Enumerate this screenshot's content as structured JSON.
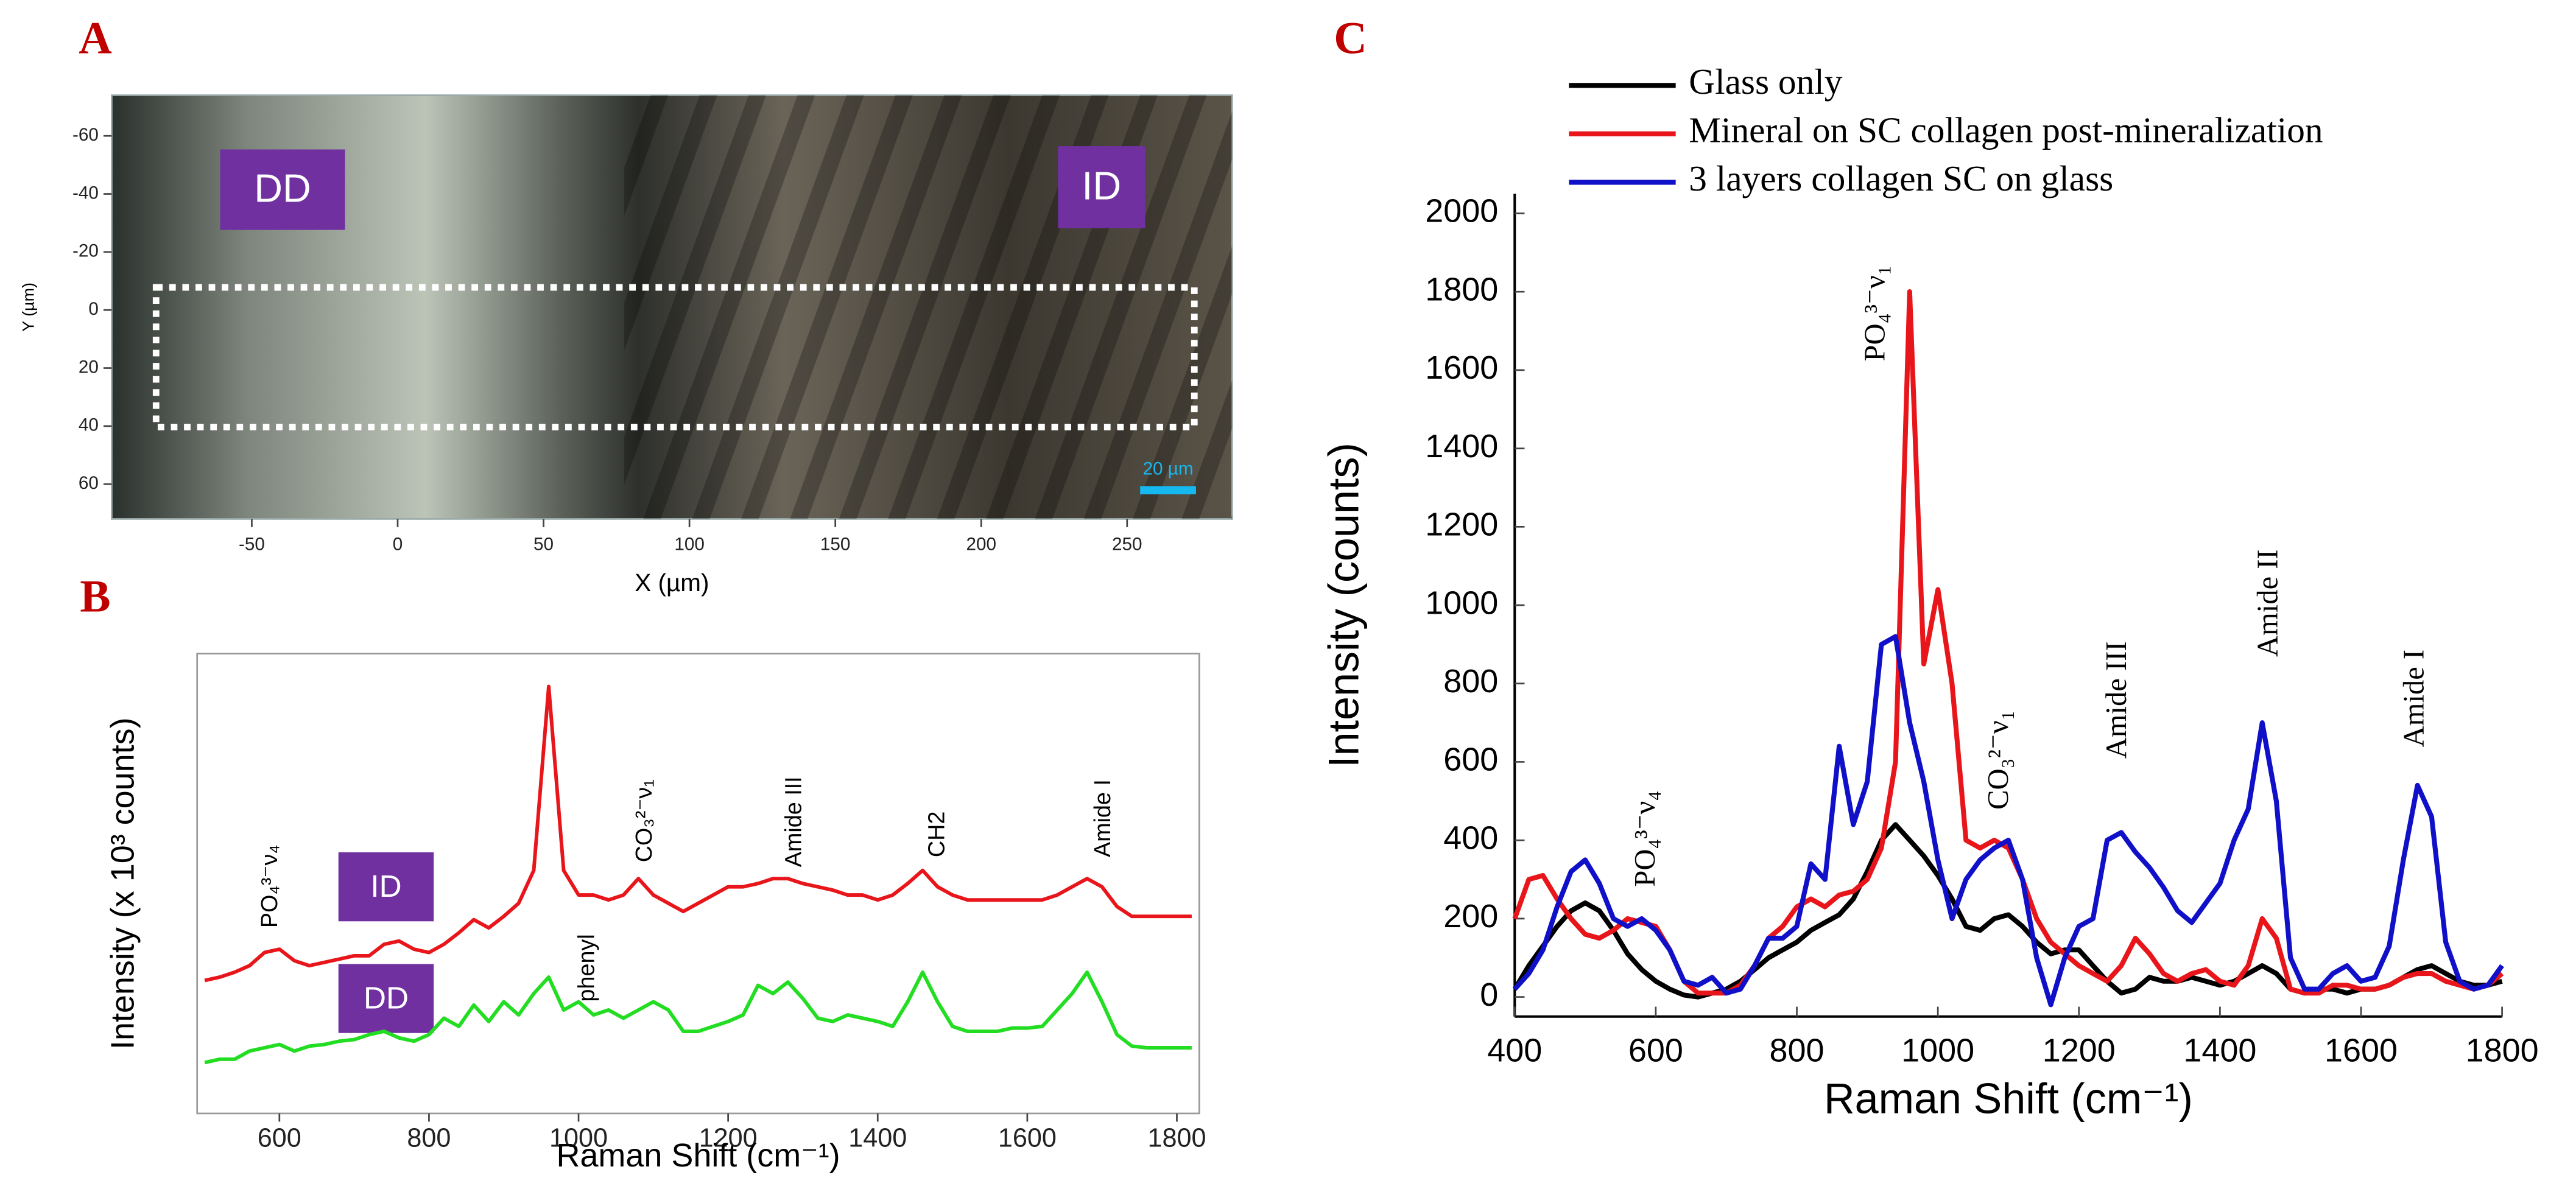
{
  "chart_data": [
    {
      "type": "image",
      "panel": "A",
      "xlabel": "X (µm)",
      "ylabel": "Y (µm)",
      "labels": [
        "DD",
        "ID"
      ],
      "scale_bar": "20 µm",
      "xlim": [
        -98,
        286
      ],
      "xticks": [
        -50,
        0,
        50,
        100,
        150,
        200,
        250
      ],
      "ylim": [
        -74,
        72
      ],
      "y_inverted": true,
      "yticks": [
        -60,
        -40,
        -20,
        0,
        20,
        40,
        60
      ]
    },
    {
      "type": "line",
      "panel": "B",
      "xlabel": "Raman Shift (cm⁻¹)",
      "ylabel": "Intensity (x 10³ counts)",
      "frame": true,
      "labels": [
        "ID",
        "DD"
      ],
      "annotations": [
        "PO₄³⁻ν₄",
        "phenyl",
        "CO₃²⁻ν₁",
        "Amide III",
        "CH2",
        "Amide I"
      ],
      "xlim": [
        490,
        1830
      ],
      "xticks": [
        600,
        800,
        1000,
        1200,
        1400,
        1600,
        1800
      ],
      "ylim": [
        0,
        2.8
      ],
      "x": [
        500,
        520,
        540,
        560,
        580,
        600,
        620,
        640,
        660,
        680,
        700,
        720,
        740,
        760,
        780,
        800,
        820,
        840,
        860,
        880,
        900,
        920,
        940,
        960,
        980,
        1000,
        1020,
        1040,
        1060,
        1080,
        1100,
        1120,
        1140,
        1160,
        1180,
        1200,
        1220,
        1240,
        1260,
        1280,
        1300,
        1320,
        1340,
        1360,
        1380,
        1400,
        1420,
        1440,
        1460,
        1480,
        1500,
        1520,
        1540,
        1560,
        1580,
        1600,
        1620,
        1640,
        1660,
        1680,
        1700,
        1720,
        1740,
        1760,
        1780,
        1800,
        1820
      ],
      "series": [
        {
          "color": "#e8161b",
          "values": [
            0.81,
            0.83,
            0.86,
            0.9,
            0.98,
            1.0,
            0.93,
            0.9,
            0.92,
            0.94,
            0.96,
            0.96,
            1.03,
            1.05,
            1.0,
            0.98,
            1.03,
            1.1,
            1.18,
            1.13,
            1.2,
            1.28,
            1.48,
            2.6,
            1.48,
            1.33,
            1.33,
            1.3,
            1.33,
            1.43,
            1.33,
            1.28,
            1.23,
            1.28,
            1.33,
            1.38,
            1.38,
            1.4,
            1.43,
            1.43,
            1.4,
            1.38,
            1.36,
            1.33,
            1.33,
            1.3,
            1.33,
            1.4,
            1.48,
            1.38,
            1.33,
            1.3,
            1.3,
            1.3,
            1.3,
            1.3,
            1.3,
            1.33,
            1.38,
            1.43,
            1.38,
            1.26,
            1.2,
            1.2,
            1.2,
            1.2,
            1.2
          ]
        },
        {
          "color": "#22dd22",
          "values": [
            0.31,
            0.33,
            0.33,
            0.38,
            0.4,
            0.42,
            0.38,
            0.41,
            0.42,
            0.44,
            0.45,
            0.48,
            0.5,
            0.46,
            0.44,
            0.48,
            0.58,
            0.53,
            0.66,
            0.56,
            0.68,
            0.6,
            0.73,
            0.83,
            0.63,
            0.68,
            0.6,
            0.63,
            0.58,
            0.63,
            0.68,
            0.63,
            0.5,
            0.5,
            0.53,
            0.56,
            0.6,
            0.78,
            0.73,
            0.8,
            0.7,
            0.58,
            0.56,
            0.6,
            0.58,
            0.56,
            0.53,
            0.68,
            0.86,
            0.68,
            0.53,
            0.5,
            0.5,
            0.5,
            0.52,
            0.52,
            0.53,
            0.63,
            0.73,
            0.86,
            0.68,
            0.48,
            0.41,
            0.4,
            0.4,
            0.4,
            0.4
          ]
        }
      ]
    },
    {
      "type": "line",
      "panel": "C",
      "xlabel": "Raman Shift (cm⁻¹)",
      "ylabel": "Intensity (counts)",
      "frame": false,
      "annotations": [
        "PO₄³⁻ν₄",
        "PO₄³⁻ν₁",
        "CO₃²⁻ν₁",
        "Amide III",
        "Amide II",
        "Amide I"
      ],
      "xlim": [
        400,
        1800
      ],
      "xticks": [
        400,
        600,
        800,
        1000,
        1200,
        1400,
        1600,
        1800
      ],
      "ylim": [
        -50,
        2050
      ],
      "yticks": [
        0,
        200,
        400,
        600,
        800,
        1000,
        1200,
        1400,
        1600,
        1800,
        2000
      ],
      "x": [
        400,
        420,
        440,
        460,
        480,
        500,
        520,
        540,
        560,
        580,
        600,
        620,
        640,
        660,
        680,
        700,
        720,
        740,
        760,
        780,
        800,
        820,
        840,
        860,
        880,
        900,
        920,
        940,
        960,
        980,
        1000,
        1020,
        1040,
        1060,
        1080,
        1100,
        1120,
        1140,
        1160,
        1180,
        1200,
        1220,
        1240,
        1260,
        1280,
        1300,
        1320,
        1340,
        1360,
        1380,
        1400,
        1420,
        1440,
        1460,
        1480,
        1500,
        1520,
        1540,
        1560,
        1580,
        1600,
        1620,
        1640,
        1660,
        1680,
        1700,
        1720,
        1740,
        1760,
        1780,
        1800
      ],
      "series": [
        {
          "name": "Glass only",
          "color": "#000000",
          "values": [
            20,
            80,
            130,
            180,
            220,
            240,
            220,
            170,
            110,
            70,
            40,
            20,
            5,
            0,
            10,
            20,
            40,
            70,
            100,
            120,
            140,
            170,
            190,
            210,
            250,
            320,
            400,
            440,
            400,
            360,
            310,
            250,
            180,
            170,
            200,
            210,
            180,
            140,
            110,
            120,
            120,
            80,
            40,
            10,
            20,
            50,
            40,
            40,
            50,
            40,
            30,
            40,
            60,
            80,
            60,
            20,
            10,
            20,
            20,
            10,
            20,
            20,
            30,
            50,
            70,
            80,
            60,
            40,
            30,
            30,
            40
          ]
        },
        {
          "name": "Mineral on SC collagen post-mineralization",
          "color": "#e8161b",
          "values": [
            200,
            300,
            310,
            250,
            200,
            160,
            150,
            170,
            200,
            190,
            180,
            120,
            40,
            10,
            10,
            10,
            30,
            80,
            150,
            180,
            230,
            250,
            230,
            260,
            270,
            300,
            380,
            600,
            1800,
            850,
            1040,
            800,
            400,
            380,
            400,
            380,
            300,
            200,
            140,
            110,
            80,
            60,
            40,
            80,
            150,
            110,
            60,
            40,
            60,
            70,
            40,
            30,
            80,
            200,
            150,
            20,
            10,
            10,
            30,
            30,
            20,
            20,
            30,
            50,
            60,
            60,
            40,
            30,
            20,
            30,
            60
          ]
        },
        {
          "name": "3 layers collagen SC on glass",
          "color": "#1010c8",
          "values": [
            20,
            60,
            120,
            230,
            320,
            350,
            290,
            200,
            180,
            200,
            170,
            120,
            40,
            30,
            50,
            10,
            20,
            80,
            150,
            150,
            180,
            340,
            300,
            640,
            440,
            550,
            900,
            920,
            700,
            550,
            350,
            200,
            300,
            350,
            380,
            400,
            300,
            100,
            -20,
            100,
            180,
            200,
            400,
            420,
            370,
            330,
            280,
            220,
            190,
            240,
            290,
            400,
            480,
            700,
            500,
            100,
            20,
            20,
            60,
            80,
            40,
            50,
            130,
            350,
            540,
            460,
            140,
            40,
            20,
            30,
            80
          ]
        }
      ]
    }
  ]
}
